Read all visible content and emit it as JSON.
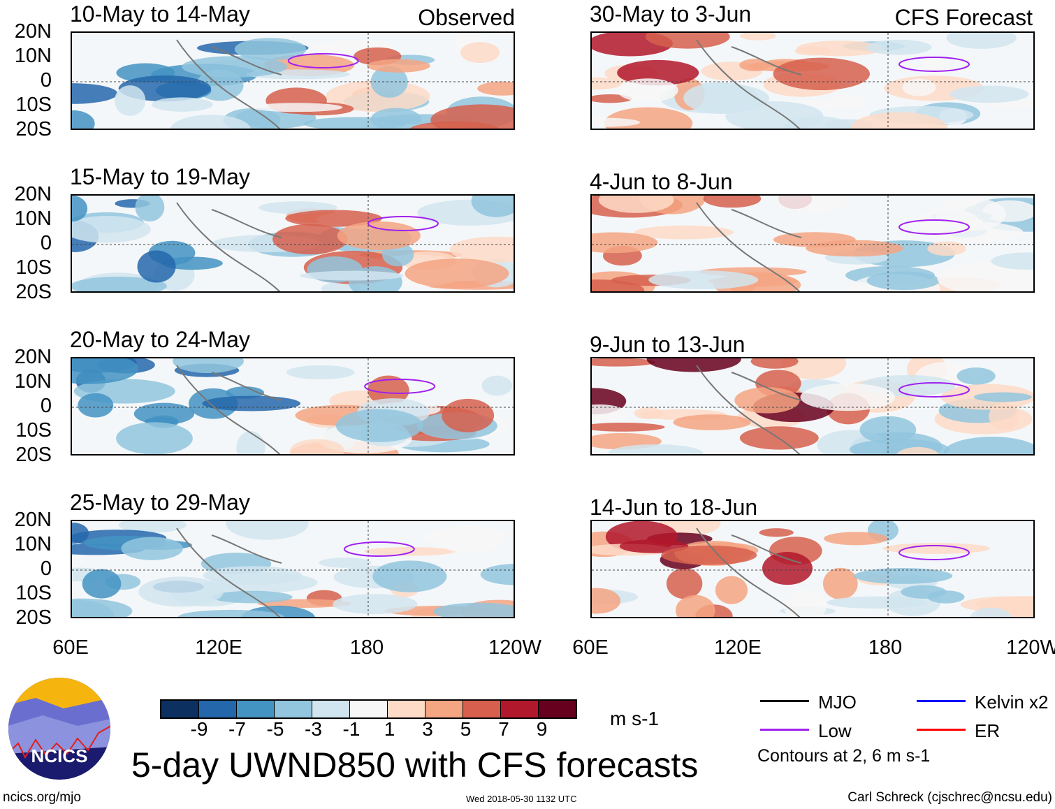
{
  "headers": {
    "observed": "Observed",
    "forecast": "CFS Forecast"
  },
  "panels": [
    {
      "title": "10-May to 14-May",
      "group": "observed"
    },
    {
      "title": "15-May to 19-May",
      "group": "observed"
    },
    {
      "title": "20-May to 24-May",
      "group": "observed"
    },
    {
      "title": "25-May to 29-May",
      "group": "observed"
    },
    {
      "title": "30-May to 3-Jun",
      "group": "forecast"
    },
    {
      "title": "4-Jun to 8-Jun",
      "group": "forecast"
    },
    {
      "title": "9-Jun to 13-Jun",
      "group": "forecast"
    },
    {
      "title": "14-Jun to 18-Jun",
      "group": "forecast"
    }
  ],
  "lat_labels": [
    "20N",
    "10N",
    "0",
    "10S",
    "20S"
  ],
  "lon_labels": [
    "60E",
    "120E",
    "180",
    "120W"
  ],
  "colorbar": {
    "colors": [
      "#0c3160",
      "#2467ab",
      "#4393c3",
      "#92c5de",
      "#d1e5f0",
      "#f7f7f7",
      "#fddbc7",
      "#f4a582",
      "#d6604d",
      "#b2182b",
      "#67001f"
    ],
    "labels": [
      "-9",
      "-7",
      "-5",
      "-3",
      "-1",
      "1",
      "3",
      "5",
      "7",
      "9"
    ],
    "units": "m s-1"
  },
  "legend": {
    "items": [
      {
        "label": "MJO",
        "color": "#000000"
      },
      {
        "label": "Kelvin x2",
        "color": "#0000ff"
      },
      {
        "label": "Low",
        "color": "#a020f0"
      },
      {
        "label": "ER",
        "color": "#ff0000"
      }
    ],
    "note": "Contours at 2, 6 m s-1"
  },
  "title": "5-day UWND850 with CFS forecasts",
  "logo_text": "NCICS",
  "footer": {
    "url": "ncics.org/mjo",
    "timestamp": "Wed 2018-05-30 1132 UTC",
    "author": "Carl Schreck (cjschrec@ncsu.edu)"
  }
}
